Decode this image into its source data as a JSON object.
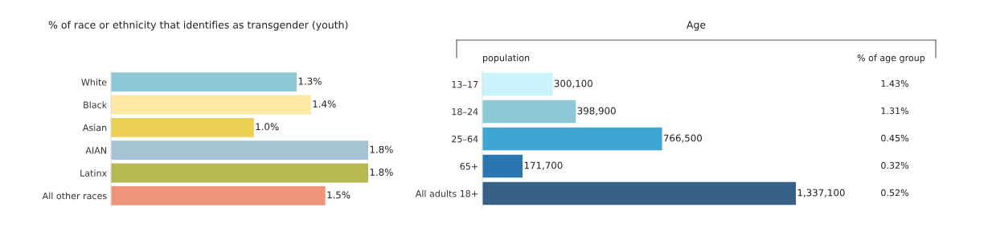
{
  "chart_data": [
    {
      "type": "bar",
      "orientation": "horizontal",
      "title": "% of race or ethnicity that identifies as transgender (youth)",
      "categories": [
        "White",
        "Black",
        "Asian",
        "AIAN",
        "Latinx",
        "All other races"
      ],
      "values": [
        1.3,
        1.4,
        1.0,
        1.8,
        1.8,
        1.5
      ],
      "colors": [
        "#8dc8d6",
        "#fde9a3",
        "#ebcf52",
        "#a6c3d4",
        "#b8b852",
        "#ee9579"
      ],
      "value_labels": [
        "1.3%",
        "1.4%",
        "1.0%",
        "1.8%",
        "1.8%",
        "1.5%"
      ],
      "tick_labels": "y",
      "grid": false,
      "legend": false
    },
    {
      "type": "bar",
      "orientation": "horizontal",
      "title": "Age",
      "categories": [
        "13–17",
        "18–24",
        "25–64",
        "65+",
        "All adults 18+"
      ],
      "values": [
        300100,
        398900,
        766500,
        171700,
        1337100
      ],
      "colors": [
        "#c8f3fb",
        "#8dc8d6",
        "#3fa5d4",
        "#2b76b0",
        "#366087"
      ],
      "value_labels": [
        "300,100",
        "398,900",
        "766,500",
        "171,700",
        "1,337,100"
      ],
      "tick_labels": "y",
      "grid": false,
      "legend": false,
      "annotations": [
        "population",
        "% of age group",
        "1.43%",
        "1.31%",
        "0.45%",
        "0.32%",
        "0.52%"
      ]
    }
  ]
}
